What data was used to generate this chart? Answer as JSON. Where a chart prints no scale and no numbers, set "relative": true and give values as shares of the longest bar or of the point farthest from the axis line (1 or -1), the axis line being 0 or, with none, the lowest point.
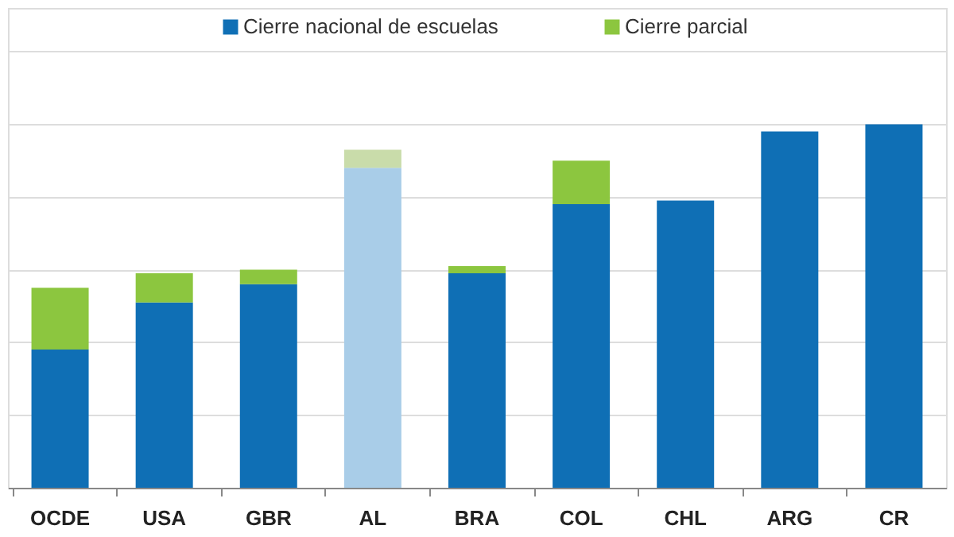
{
  "chart_data": {
    "type": "bar",
    "stacked": true,
    "relative": true,
    "grid": "y",
    "legend": "top",
    "categories": [
      "OCDE",
      "USA",
      "GBR",
      "AL",
      "BRA",
      "COL",
      "CHL",
      "ARG",
      "CR"
    ],
    "series": [
      {
        "name": "Cierre nacional de escuelas",
        "color": "#0f6fb5",
        "colors": [
          "#0f6fb5",
          "#0f6fb5",
          "#0f6fb5",
          "#a9cde8",
          "#0f6fb5",
          "#0f6fb5",
          "#0f6fb5",
          "#0f6fb5",
          "#0f6fb5"
        ],
        "values": [
          0.38,
          0.51,
          0.56,
          0.88,
          0.59,
          0.78,
          0.79,
          0.98,
          1.0
        ]
      },
      {
        "name": "Cierre parcial",
        "color": "#8cc63f",
        "colors": [
          "#8cc63f",
          "#8cc63f",
          "#8cc63f",
          "#c9dcaa",
          "#8cc63f",
          "#8cc63f",
          "#8cc63f",
          "#8cc63f",
          "#8cc63f"
        ],
        "values": [
          0.17,
          0.08,
          0.04,
          0.05,
          0.02,
          0.12,
          0.0,
          0.0,
          0.0
        ]
      }
    ]
  }
}
